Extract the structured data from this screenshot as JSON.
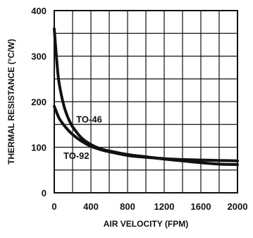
{
  "chart_data": {
    "type": "line",
    "xlabel": "AIR VELOCITY (FPM)",
    "ylabel": "THERMAL RESISTANCE (°C/W)",
    "xlim": [
      0,
      2000
    ],
    "ylim": [
      0,
      400
    ],
    "xticks": [
      "0",
      "400",
      "800",
      "1200",
      "1600",
      "2000"
    ],
    "yticks": [
      "0",
      "100",
      "200",
      "300",
      "400"
    ],
    "grid": true,
    "series": [
      {
        "name": "TO-46",
        "x": [
          0,
          25,
          50,
          100,
          150,
          200,
          300,
          400,
          500,
          600,
          800,
          1000,
          1200,
          1400,
          1600,
          1800,
          2000
        ],
        "values": [
          360,
          295,
          245,
          195,
          165,
          145,
          120,
          106,
          97,
          92,
          84,
          79,
          74,
          70,
          66,
          63,
          62
        ]
      },
      {
        "name": "TO-92",
        "x": [
          0,
          50,
          100,
          150,
          200,
          300,
          400,
          500,
          600,
          800,
          1000,
          1200,
          1400,
          1600,
          1800,
          2000
        ],
        "values": [
          190,
          165,
          150,
          138,
          128,
          113,
          102,
          95,
          90,
          82,
          78,
          75,
          73,
          72,
          71,
          70
        ]
      }
    ]
  }
}
